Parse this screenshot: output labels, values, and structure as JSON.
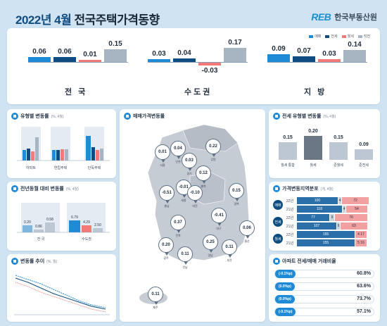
{
  "header": {
    "year_month": "2022년 4월",
    "title_rest": "전국주택가격동향",
    "logo_mark": "REB",
    "logo_text": "한국부동산원"
  },
  "top_legend": [
    {
      "label": "매매",
      "color": "#1f8bd6"
    },
    {
      "label": "전세",
      "color": "#0f4c81"
    },
    {
      "label": "월세",
      "color": "#f47a7a"
    },
    {
      "label": "직전",
      "color": "#a7b4c2"
    }
  ],
  "regions": [
    {
      "name": "전 국",
      "values": [
        "0.06",
        "0.06",
        "0.01",
        "0.15"
      ],
      "nums": [
        0.06,
        0.06,
        0.01,
        0.15
      ]
    },
    {
      "name": "수도권",
      "values": [
        "0.03",
        "0.04",
        "-0.03",
        "0.17"
      ],
      "nums": [
        0.03,
        0.04,
        -0.03,
        0.17
      ]
    },
    {
      "name": "지 방",
      "values": [
        "0.09",
        "0.07",
        "0.03",
        "0.14"
      ],
      "nums": [
        0.09,
        0.07,
        0.03,
        0.14
      ]
    }
  ],
  "cards": {
    "type_change": {
      "title": "유형별 변동률",
      "unit": "(%, 4월)",
      "groups": [
        "아파트",
        "연립주택",
        "단독주택"
      ]
    },
    "annual": {
      "title": "전년동월 대비 변동률",
      "unit": "(%, 4월)",
      "values": [
        "0.20",
        "0.86",
        "0.58",
        "6.79",
        "4.29",
        "2.50"
      ],
      "labels": [
        "전 국",
        "수도권"
      ]
    },
    "trend": {
      "title": "변동률 추이",
      "unit": "(%, 월)"
    },
    "map": {
      "title": "매매가격변동률"
    },
    "jeonse_type": {
      "title": "전세 유형별 변동률",
      "unit": "(%, 4월)",
      "values": [
        "0.15",
        "0.20",
        "0.15",
        "0.09"
      ],
      "labels": [
        "월세 통합",
        "월세",
        "준월세",
        "준전세"
      ]
    },
    "dist": {
      "title": "가격변동지역분포",
      "unit": "(개, 4월)",
      "rows": [
        {
          "group": "매매",
          "sub": "22년",
          "vals": [
            "100",
            "4",
            "72"
          ]
        },
        {
          "group": "",
          "sub": "21년",
          "vals": [
            "118",
            "4",
            "54"
          ]
        },
        {
          "group": "전세",
          "sub": "22년",
          "vals": [
            "77",
            "9",
            "70"
          ]
        },
        {
          "group": "",
          "sub": "21년",
          "vals": [
            "107",
            "6",
            "63"
          ]
        },
        {
          "group": "월세",
          "sub": "22년",
          "vals": [
            "155",
            "",
            "4 17"
          ]
        },
        {
          "group": "",
          "sub": "21년",
          "vals": [
            "155",
            "",
            "5 16"
          ]
        }
      ]
    },
    "ratio": {
      "title": "아파트 전세/매매 거래비율",
      "rows": [
        {
          "label": "(-0.1%p)",
          "value": "60.8%"
        },
        {
          "label": "(0.0%p)",
          "value": "63.6%"
        },
        {
          "label": "(0.0%p)",
          "value": "73.7%"
        },
        {
          "label": "(-0.1%p)",
          "value": "57.1%"
        }
      ]
    }
  },
  "map_pins": [
    {
      "value": "0.01",
      "label": "서울"
    },
    {
      "value": "0.04",
      "label": "인천"
    },
    {
      "value": "0.03",
      "label": "경기"
    },
    {
      "value": "0.22",
      "label": "강원"
    },
    {
      "value": "0.12",
      "label": "충북"
    },
    {
      "value": "0.15",
      "label": "경북"
    },
    {
      "value": "-0.01",
      "label": "세종"
    },
    {
      "value": "-0.51",
      "label": "충남"
    },
    {
      "value": "-0.10",
      "label": "대전"
    },
    {
      "value": "-0.41",
      "label": "대구"
    },
    {
      "value": "0.37",
      "label": "전북"
    },
    {
      "value": "0.06",
      "label": "울산"
    },
    {
      "value": "0.25",
      "label": "경남"
    },
    {
      "value": "0.11",
      "label": "부산"
    },
    {
      "value": "0.20",
      "label": "광주"
    },
    {
      "value": "0.11",
      "label": "전남"
    },
    {
      "value": "0.11",
      "label": "제주"
    }
  ],
  "chart_data": [
    {
      "type": "bar",
      "title": "전국주택가격동향",
      "categories": [
        "전 국",
        "수도권",
        "지 방"
      ],
      "series": [
        {
          "name": "매매",
          "values": [
            0.06,
            0.03,
            0.09
          ]
        },
        {
          "name": "전세",
          "values": [
            0.06,
            0.04,
            0.07
          ]
        },
        {
          "name": "월세",
          "values": [
            0.01,
            -0.03,
            0.03
          ]
        },
        {
          "name": "직전",
          "values": [
            0.15,
            0.17,
            0.14
          ]
        }
      ]
    },
    {
      "type": "bar",
      "title": "전세 유형별 변동률",
      "categories": [
        "월세 통합",
        "월세",
        "준월세",
        "준전세"
      ],
      "values": [
        0.15,
        0.2,
        0.15,
        0.09
      ]
    },
    {
      "type": "bar",
      "title": "아파트 전세/매매 거래비율",
      "values": [
        60.8,
        63.6,
        73.7,
        57.1
      ]
    }
  ]
}
